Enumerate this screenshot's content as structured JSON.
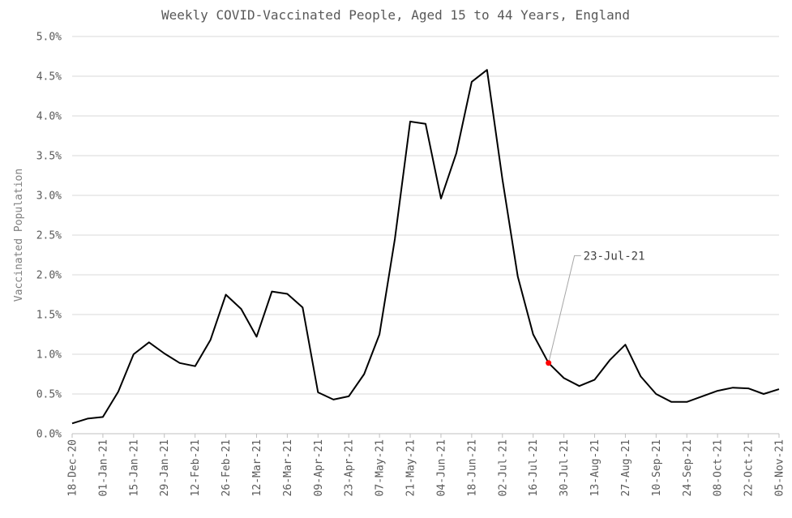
{
  "chart_data": {
    "type": "line",
    "title": "Weekly COVID-Vaccinated People, Aged 15 to 44 Years, England",
    "xlabel": "",
    "ylabel": "Vaccinated Population",
    "ylim": [
      0,
      5.0
    ],
    "y_unit": "%",
    "y_ticks": [
      "0.0%",
      "0.5%",
      "1.0%",
      "1.5%",
      "2.0%",
      "2.5%",
      "3.0%",
      "3.5%",
      "4.0%",
      "4.5%",
      "5.0%"
    ],
    "x_tick_labels": [
      "18-Dec-20",
      "01-Jan-21",
      "15-Jan-21",
      "29-Jan-21",
      "12-Feb-21",
      "26-Feb-21",
      "12-Mar-21",
      "26-Mar-21",
      "09-Apr-21",
      "23-Apr-21",
      "07-May-21",
      "21-May-21",
      "04-Jun-21",
      "18-Jun-21",
      "02-Jul-21",
      "16-Jul-21",
      "30-Jul-21",
      "13-Aug-21",
      "27-Aug-21",
      "10-Sep-21",
      "24-Sep-21",
      "08-Oct-21",
      "22-Oct-21",
      "05-Nov-21"
    ],
    "grid": true,
    "legend": "none",
    "line_color": "#000000",
    "highlight_color": "#ff0000",
    "series": [
      {
        "x": [
          "18-Dec-20",
          "25-Dec-20",
          "01-Jan-21",
          "08-Jan-21",
          "15-Jan-21",
          "22-Jan-21",
          "29-Jan-21",
          "05-Feb-21",
          "12-Feb-21",
          "19-Feb-21",
          "26-Feb-21",
          "05-Mar-21",
          "12-Mar-21",
          "19-Mar-21",
          "26-Mar-21",
          "02-Apr-21",
          "09-Apr-21",
          "16-Apr-21",
          "23-Apr-21",
          "30-Apr-21",
          "07-May-21",
          "14-May-21",
          "21-May-21",
          "28-May-21",
          "04-Jun-21",
          "11-Jun-21",
          "18-Jun-21",
          "25-Jun-21",
          "02-Jul-21",
          "09-Jul-21",
          "16-Jul-21",
          "23-Jul-21",
          "30-Jul-21",
          "06-Aug-21",
          "13-Aug-21",
          "20-Aug-21",
          "27-Aug-21",
          "03-Sep-21",
          "10-Sep-21",
          "17-Sep-21",
          "24-Sep-21",
          "01-Oct-21",
          "08-Oct-21",
          "15-Oct-21",
          "22-Oct-21",
          "29-Oct-21",
          "05-Nov-21"
        ],
        "values": [
          0.13,
          0.19,
          0.21,
          0.53,
          1.0,
          1.15,
          1.01,
          0.89,
          0.85,
          1.18,
          1.75,
          1.57,
          1.22,
          1.79,
          1.76,
          1.59,
          0.52,
          0.43,
          0.47,
          0.75,
          1.25,
          2.45,
          3.93,
          3.9,
          2.96,
          3.53,
          4.43,
          4.58,
          3.2,
          1.98,
          1.25,
          0.89,
          0.7,
          0.6,
          0.68,
          0.93,
          1.12,
          0.72,
          0.5,
          0.4,
          0.4,
          0.47,
          0.54,
          0.58,
          0.57,
          0.5,
          0.56
        ]
      }
    ],
    "annotations": [
      {
        "text": "23-Jul-21",
        "x": "23-Jul-21",
        "value": 0.89
      }
    ]
  }
}
